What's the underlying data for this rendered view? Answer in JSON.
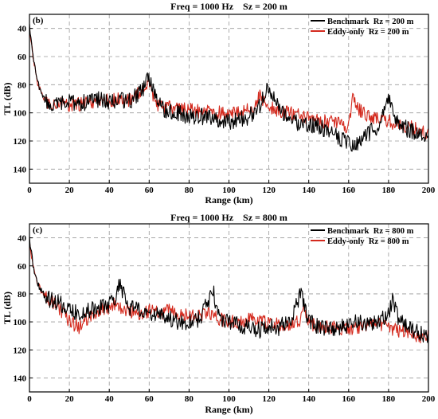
{
  "chart_data": [
    {
      "type": "line",
      "panel_label": "(b)",
      "title": "Freq = 1000 Hz    Sz = 200 m",
      "xlabel": "Range (km)",
      "ylabel": "TL (dB)",
      "xlim": [
        0,
        200
      ],
      "ylim": [
        150,
        30
      ],
      "y_axis_inverted": true,
      "x_ticks": [
        0,
        20,
        40,
        60,
        80,
        100,
        120,
        140,
        160,
        180,
        200
      ],
      "y_ticks": [
        40,
        60,
        80,
        100,
        120,
        140
      ],
      "grid": "dashed",
      "legend_position": "top-right",
      "series": [
        {
          "name": "Benchmark  Rz = 200 m",
          "color": "#000000",
          "x": [
            0,
            2,
            4,
            6,
            8,
            10,
            15,
            20,
            25,
            30,
            35,
            40,
            45,
            50,
            55,
            57,
            60,
            63,
            66,
            70,
            75,
            80,
            85,
            90,
            95,
            100,
            105,
            110,
            115,
            118,
            120,
            122,
            125,
            130,
            135,
            140,
            145,
            150,
            155,
            160,
            163,
            166,
            170,
            175,
            178,
            180,
            182,
            185,
            190,
            195,
            200
          ],
          "y": [
            38,
            62,
            78,
            86,
            92,
            96,
            94,
            92,
            93,
            92,
            90,
            92,
            91,
            92,
            86,
            84,
            74,
            88,
            97,
            98,
            100,
            103,
            102,
            104,
            105,
            106,
            105,
            103,
            96,
            88,
            80,
            88,
            96,
            104,
            108,
            108,
            110,
            112,
            118,
            122,
            125,
            118,
            114,
            110,
            100,
            88,
            100,
            108,
            112,
            114,
            116
          ]
        },
        {
          "name": "Eddy-only  Rz = 200 m",
          "color": "#d42a1e",
          "x": [
            0,
            2,
            4,
            6,
            8,
            10,
            15,
            20,
            25,
            30,
            35,
            40,
            45,
            50,
            55,
            57,
            60,
            63,
            66,
            70,
            75,
            80,
            85,
            90,
            95,
            100,
            105,
            110,
            113,
            115,
            118,
            120,
            125,
            130,
            135,
            140,
            145,
            150,
            155,
            160,
            162,
            165,
            170,
            175,
            180,
            185,
            190,
            195,
            200
          ],
          "y": [
            40,
            62,
            78,
            86,
            91,
            94,
            93,
            94,
            94,
            93,
            90,
            92,
            90,
            91,
            86,
            82,
            80,
            92,
            96,
            96,
            97,
            98,
            99,
            99,
            100,
            100,
            99,
            98,
            95,
            88,
            92,
            96,
            98,
            100,
            102,
            104,
            106,
            106,
            108,
            110,
            90,
            98,
            102,
            104,
            106,
            108,
            110,
            112,
            114
          ]
        }
      ]
    },
    {
      "type": "line",
      "panel_label": "(c)",
      "title": "Freq = 1000 Hz    Sz = 800 m",
      "xlabel": "Range (km)",
      "ylabel": "TL (dB)",
      "xlim": [
        0,
        200
      ],
      "ylim": [
        150,
        30
      ],
      "y_axis_inverted": true,
      "x_ticks": [
        0,
        20,
        40,
        60,
        80,
        100,
        120,
        140,
        160,
        180,
        200
      ],
      "y_ticks": [
        40,
        60,
        80,
        100,
        120,
        140
      ],
      "grid": "dashed",
      "legend_position": "top-right",
      "series": [
        {
          "name": "Benchmark  Rz = 800 m",
          "color": "#000000",
          "x": [
            0,
            2,
            4,
            6,
            8,
            10,
            15,
            20,
            25,
            30,
            35,
            40,
            43,
            45,
            48,
            50,
            55,
            60,
            65,
            70,
            75,
            80,
            85,
            90,
            92,
            95,
            100,
            105,
            110,
            115,
            120,
            125,
            130,
            133,
            136,
            140,
            145,
            150,
            155,
            160,
            165,
            170,
            175,
            180,
            182,
            185,
            190,
            195,
            200
          ],
          "y": [
            40,
            62,
            72,
            78,
            82,
            84,
            86,
            92,
            94,
            92,
            90,
            88,
            82,
            72,
            84,
            90,
            92,
            94,
            96,
            98,
            100,
            100,
            98,
            84,
            78,
            96,
            100,
            102,
            104,
            106,
            104,
            104,
            100,
            92,
            80,
            100,
            104,
            106,
            104,
            102,
            100,
            102,
            100,
            94,
            84,
            98,
            104,
            108,
            110
          ]
        },
        {
          "name": "Eddy-only  Rz = 800 m",
          "color": "#d42a1e",
          "x": [
            0,
            2,
            4,
            6,
            8,
            10,
            15,
            20,
            25,
            30,
            35,
            40,
            43,
            45,
            50,
            55,
            60,
            65,
            70,
            75,
            80,
            85,
            90,
            95,
            100,
            105,
            110,
            115,
            120,
            125,
            130,
            135,
            138,
            140,
            145,
            150,
            155,
            160,
            165,
            170,
            175,
            180,
            185,
            190,
            195,
            200
          ],
          "y": [
            42,
            62,
            72,
            78,
            82,
            84,
            90,
            100,
            104,
            96,
            92,
            90,
            86,
            90,
            92,
            94,
            92,
            94,
            92,
            94,
            96,
            96,
            94,
            98,
            100,
            100,
            98,
            100,
            100,
            102,
            102,
            100,
            90,
            100,
            104,
            104,
            104,
            106,
            104,
            102,
            102,
            104,
            106,
            108,
            110,
            110
          ]
        }
      ]
    }
  ]
}
